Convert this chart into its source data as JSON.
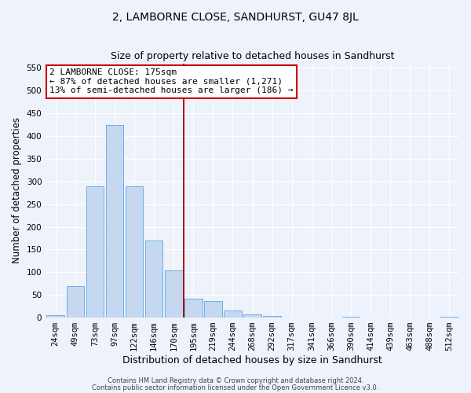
{
  "title": "2, LAMBORNE CLOSE, SANDHURST, GU47 8JL",
  "subtitle": "Size of property relative to detached houses in Sandhurst",
  "xlabel": "Distribution of detached houses by size in Sandhurst",
  "ylabel": "Number of detached properties",
  "categories": [
    "24sqm",
    "49sqm",
    "73sqm",
    "97sqm",
    "122sqm",
    "146sqm",
    "170sqm",
    "195sqm",
    "219sqm",
    "244sqm",
    "268sqm",
    "292sqm",
    "317sqm",
    "341sqm",
    "366sqm",
    "390sqm",
    "414sqm",
    "439sqm",
    "463sqm",
    "488sqm",
    "512sqm"
  ],
  "values": [
    5,
    70,
    290,
    425,
    290,
    170,
    104,
    42,
    37,
    15,
    7,
    3,
    1,
    1,
    0,
    2,
    0,
    0,
    0,
    0,
    2
  ],
  "bar_color": "#c5d8f0",
  "bar_edge_color": "#6aaee8",
  "vline_x_index": 6.5,
  "vline_color": "#aa0000",
  "annotation_line1": "2 LAMBORNE CLOSE: 175sqm",
  "annotation_line2": "← 87% of detached houses are smaller (1,271)",
  "annotation_line3": "13% of semi-detached houses are larger (186) →",
  "annotation_box_color": "#cc0000",
  "ylim": [
    0,
    560
  ],
  "yticks": [
    0,
    50,
    100,
    150,
    200,
    250,
    300,
    350,
    400,
    450,
    500,
    550
  ],
  "footer_line1": "Contains HM Land Registry data © Crown copyright and database right 2024.",
  "footer_line2": "Contains public sector information licensed under the Open Government Licence v3.0.",
  "bg_color": "#eef2fa",
  "plot_bg_color": "#eef2fa",
  "title_fontsize": 10,
  "subtitle_fontsize": 9,
  "tick_fontsize": 7.5,
  "ylabel_fontsize": 8.5,
  "xlabel_fontsize": 9,
  "footer_fontsize": 6,
  "annotation_fontsize": 8
}
